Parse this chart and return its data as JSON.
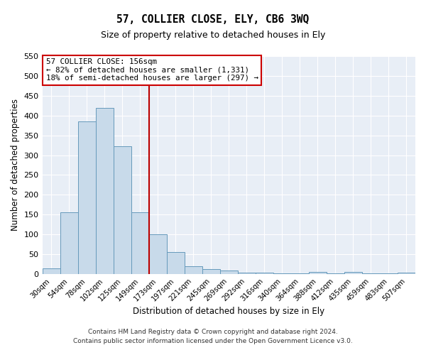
{
  "title": "57, COLLIER CLOSE, ELY, CB6 3WQ",
  "subtitle": "Size of property relative to detached houses in Ely",
  "xlabel": "Distribution of detached houses by size in Ely",
  "ylabel": "Number of detached properties",
  "bar_color": "#c8daea",
  "bar_edge_color": "#6699bb",
  "background_color": "#e8eef6",
  "annotation_text": "57 COLLIER CLOSE: 156sqm\n← 82% of detached houses are smaller (1,331)\n18% of semi-detached houses are larger (297) →",
  "vline_x": 5.5,
  "vline_color": "#bb0000",
  "ylim": [
    0,
    550
  ],
  "yticks": [
    0,
    50,
    100,
    150,
    200,
    250,
    300,
    350,
    400,
    450,
    500,
    550
  ],
  "categories": [
    "30sqm",
    "54sqm",
    "78sqm",
    "102sqm",
    "125sqm",
    "149sqm",
    "173sqm",
    "197sqm",
    "221sqm",
    "245sqm",
    "269sqm",
    "292sqm",
    "316sqm",
    "340sqm",
    "364sqm",
    "388sqm",
    "412sqm",
    "435sqm",
    "459sqm",
    "483sqm",
    "507sqm"
  ],
  "values": [
    15,
    155,
    385,
    420,
    322,
    155,
    100,
    55,
    20,
    12,
    8,
    3,
    3,
    2,
    1,
    5,
    1,
    5,
    1,
    1,
    3
  ],
  "footnote1": "Contains HM Land Registry data © Crown copyright and database right 2024.",
  "footnote2": "Contains public sector information licensed under the Open Government Licence v3.0."
}
